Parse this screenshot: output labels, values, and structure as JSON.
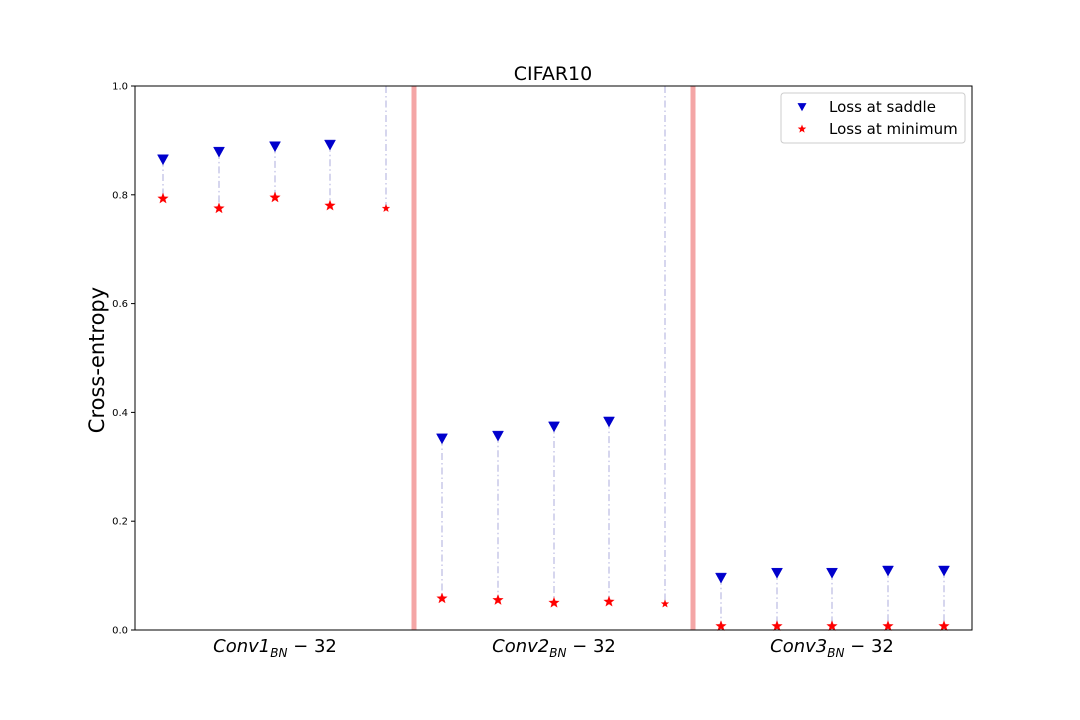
{
  "chart_data": {
    "type": "scatter",
    "title": "CIFAR10",
    "ylabel": "Cross-entropy",
    "xlabel": "",
    "ylim": [
      0,
      1.0
    ],
    "yticks": [
      "0.0",
      "0.2",
      "0.4",
      "0.6",
      "0.8",
      "1.0"
    ],
    "grid": false,
    "legend_position": "top-right",
    "groups": [
      {
        "name": "Conv1",
        "sub": "BN",
        "suffix": " − 32"
      },
      {
        "name": "Conv2",
        "sub": "BN",
        "suffix": " − 32"
      },
      {
        "name": "Conv3",
        "sub": "BN",
        "suffix": " − 32"
      }
    ],
    "series": [
      {
        "name": "Loss at saddle",
        "marker": "triangle-down",
        "color": "#0000cc",
        "values": [
          [
            0.865,
            0.879,
            0.889,
            0.892,
            null
          ],
          [
            0.352,
            0.357,
            0.374,
            0.383,
            null
          ],
          [
            0.096,
            0.105,
            0.105,
            0.109,
            0.109
          ]
        ]
      },
      {
        "name": "Loss at minimum",
        "marker": "star",
        "color": "#ff0000",
        "values": [
          [
            0.793,
            0.775,
            0.795,
            0.78,
            0.775
          ],
          [
            0.058,
            0.055,
            0.05,
            0.052,
            0.048
          ],
          [
            0.007,
            0.007,
            0.007,
            0.007,
            0.007
          ]
        ]
      }
    ],
    "colors": {
      "separator": "#f4a6a6",
      "stem": "#c8c8e8"
    }
  }
}
